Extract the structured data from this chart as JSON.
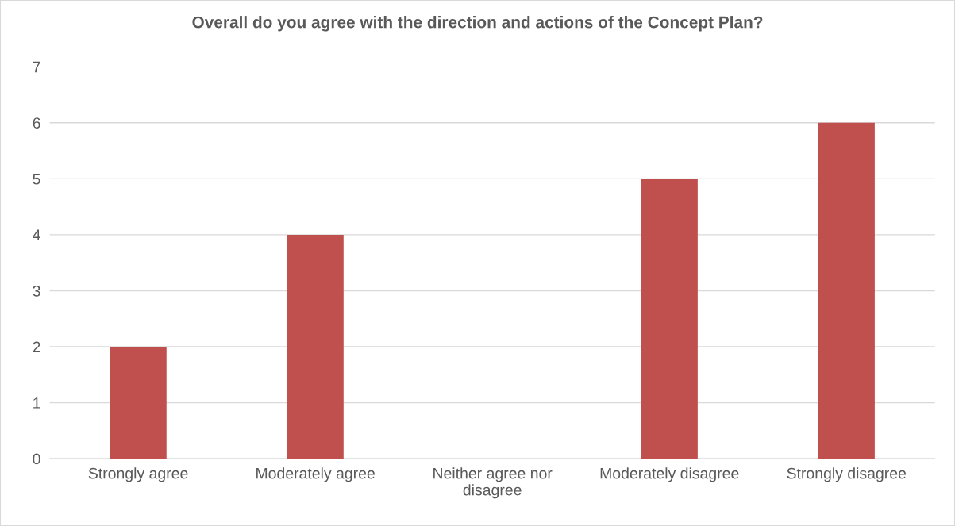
{
  "chart_data": {
    "type": "bar",
    "title": "Overall do you agree with the direction and actions of the Concept Plan?",
    "categories": [
      "Strongly agree",
      "Moderately agree",
      "Neither agree nor\ndisagree",
      "Moderately disagree",
      "Strongly disagree"
    ],
    "values": [
      2,
      4,
      0,
      5,
      6
    ],
    "color": "#c0504d",
    "ylim": [
      0,
      7
    ],
    "yticks": [
      0,
      1,
      2,
      3,
      4,
      5,
      6,
      7
    ],
    "grid": "y",
    "legend": false
  }
}
